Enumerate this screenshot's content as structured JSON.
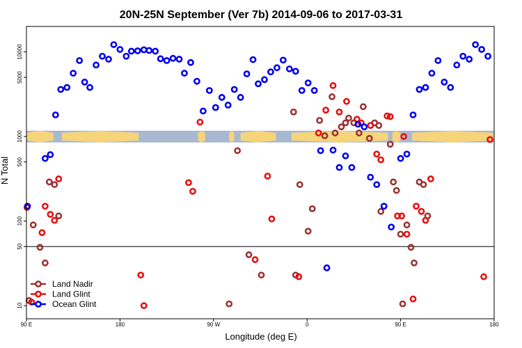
{
  "chart_data": {
    "type": "scatter",
    "title": "20N-25N September (Ver 7b)   2014-09-06 to 2017-03-31",
    "xlabel": "Longitude (deg E)",
    "ylabel": "N Total",
    "xlim": [
      90,
      540
    ],
    "y_scale": "log",
    "ylim": [
      7,
      20000
    ],
    "x_ticks": [
      {
        "value": 90,
        "label": "90 E"
      },
      {
        "value": 180,
        "label": "180"
      },
      {
        "value": 270,
        "label": "90 W"
      },
      {
        "value": 360,
        "label": "0"
      },
      {
        "value": 450,
        "label": "90 E"
      },
      {
        "value": 540,
        "label": "180"
      }
    ],
    "y_ticks": [
      {
        "value": 10,
        "label": "10"
      },
      {
        "value": 50,
        "label": "50"
      },
      {
        "value": 100,
        "label": "100"
      },
      {
        "value": 500,
        "label": "500"
      },
      {
        "value": 1000,
        "label": "1000"
      },
      {
        "value": 5000,
        "label": "5000"
      },
      {
        "value": 10000,
        "label": "10000"
      }
    ],
    "reference_line": 50,
    "map_band": {
      "y_range": [
        850,
        1170
      ],
      "ocean_color": "#a8b8d0",
      "land_color": "#f5d47a"
    },
    "legend": {
      "position": "bottom-left"
    },
    "series": [
      {
        "name": "Land Nadir",
        "color": "#993333",
        "points": [
          [
            92.5,
            11.5
          ],
          [
            96.5,
            90
          ],
          [
            103,
            49
          ],
          [
            108,
            32
          ],
          [
            112,
            290
          ],
          [
            117,
            270
          ],
          [
            121,
            115
          ],
          [
            285,
            10.5
          ],
          [
            293,
            680
          ],
          [
            304,
            40
          ],
          [
            316,
            23
          ],
          [
            347,
            1950
          ],
          [
            349,
            23
          ],
          [
            353,
            270
          ],
          [
            361,
            76
          ],
          [
            365,
            140
          ],
          [
            372,
            1550
          ],
          [
            377,
            1020
          ],
          [
            384,
            2950
          ],
          [
            387,
            1100
          ],
          [
            393,
            1300
          ],
          [
            397,
            1450
          ],
          [
            400,
            1650
          ],
          [
            405,
            1450
          ],
          [
            410,
            1100
          ],
          [
            414,
            2250
          ],
          [
            420,
            950
          ],
          [
            425,
            1450
          ],
          [
            429,
            1350
          ],
          [
            431,
            130
          ],
          [
            440,
            810
          ],
          [
            443,
            290
          ],
          [
            446,
            230
          ],
          [
            450,
            70
          ],
          [
            452,
            10.5
          ],
          [
            456,
            90
          ],
          [
            460,
            49
          ],
          [
            463,
            32
          ],
          [
            468,
            290
          ],
          [
            472,
            270
          ],
          [
            476,
            115
          ]
        ]
      },
      {
        "name": "Land Glint",
        "color": "#e81010",
        "points": [
          [
            90.5,
            145
          ],
          [
            95,
            11
          ],
          [
            105,
            73
          ],
          [
            108,
            150
          ],
          [
            113,
            120
          ],
          [
            117,
            102
          ],
          [
            121,
            315
          ],
          [
            200,
            23
          ],
          [
            203,
            10
          ],
          [
            246,
            285
          ],
          [
            250,
            225
          ],
          [
            257,
            1480
          ],
          [
            310,
            35
          ],
          [
            322,
            340
          ],
          [
            326,
            106
          ],
          [
            352,
            22
          ],
          [
            371,
            1100
          ],
          [
            378,
            2050
          ],
          [
            385,
            4000
          ],
          [
            391,
            1950
          ],
          [
            398,
            2600
          ],
          [
            408,
            1600
          ],
          [
            412,
            1450
          ],
          [
            421,
            1350
          ],
          [
            427,
            620
          ],
          [
            431,
            530
          ],
          [
            437,
            1750
          ],
          [
            440,
            1720
          ],
          [
            447,
            115
          ],
          [
            451,
            115
          ],
          [
            453,
            1000
          ],
          [
            456,
            70
          ],
          [
            462,
            12
          ],
          [
            465,
            150
          ],
          [
            470,
            130
          ],
          [
            474,
            102
          ],
          [
            479,
            315
          ],
          [
            530,
            22
          ],
          [
            536,
            920
          ]
        ]
      },
      {
        "name": "Ocean Glint",
        "color": "#0000ee",
        "points": [
          [
            91,
            150
          ],
          [
            108,
            550
          ],
          [
            113,
            610
          ],
          [
            118,
            1800
          ],
          [
            123,
            3600
          ],
          [
            129,
            3800
          ],
          [
            135,
            5600
          ],
          [
            141,
            7900
          ],
          [
            146,
            4400
          ],
          [
            151,
            3800
          ],
          [
            157,
            7000
          ],
          [
            163,
            8900
          ],
          [
            169,
            8200
          ],
          [
            174,
            12200
          ],
          [
            180,
            10700
          ],
          [
            186,
            8900
          ],
          [
            191,
            10200
          ],
          [
            197,
            10300
          ],
          [
            203,
            10600
          ],
          [
            208,
            10400
          ],
          [
            214,
            10200
          ],
          [
            219,
            8300
          ],
          [
            225,
            7900
          ],
          [
            231,
            8400
          ],
          [
            237,
            8200
          ],
          [
            242,
            5600
          ],
          [
            248,
            7500
          ],
          [
            254,
            4500
          ],
          [
            260,
            2000
          ],
          [
            266,
            3500
          ],
          [
            272,
            2200
          ],
          [
            278,
            2900
          ],
          [
            284,
            2350
          ],
          [
            290,
            3600
          ],
          [
            296,
            2900
          ],
          [
            302,
            5500
          ],
          [
            308,
            8100
          ],
          [
            313,
            4200
          ],
          [
            319,
            4700
          ],
          [
            325,
            5800
          ],
          [
            331,
            6500
          ],
          [
            337,
            8000
          ],
          [
            343,
            6300
          ],
          [
            349,
            5900
          ],
          [
            355,
            3500
          ],
          [
            361,
            4300
          ],
          [
            367,
            3500
          ],
          [
            373,
            680
          ],
          [
            379,
            28
          ],
          [
            385,
            690
          ],
          [
            391,
            430
          ],
          [
            397,
            590
          ],
          [
            403,
            430
          ],
          [
            409,
            1400
          ],
          [
            415,
            1300
          ],
          [
            421,
            330
          ],
          [
            427,
            270
          ],
          [
            434,
            150
          ],
          [
            441,
            85
          ],
          [
            450,
            550
          ],
          [
            456,
            620
          ],
          [
            462,
            1800
          ],
          [
            468,
            3600
          ],
          [
            474,
            3800
          ],
          [
            480,
            5600
          ],
          [
            486,
            7900
          ],
          [
            492,
            4400
          ],
          [
            498,
            3800
          ],
          [
            504,
            7000
          ],
          [
            510,
            8900
          ],
          [
            516,
            8200
          ],
          [
            522,
            12200
          ],
          [
            528,
            10700
          ],
          [
            534,
            8900
          ]
        ]
      }
    ]
  }
}
